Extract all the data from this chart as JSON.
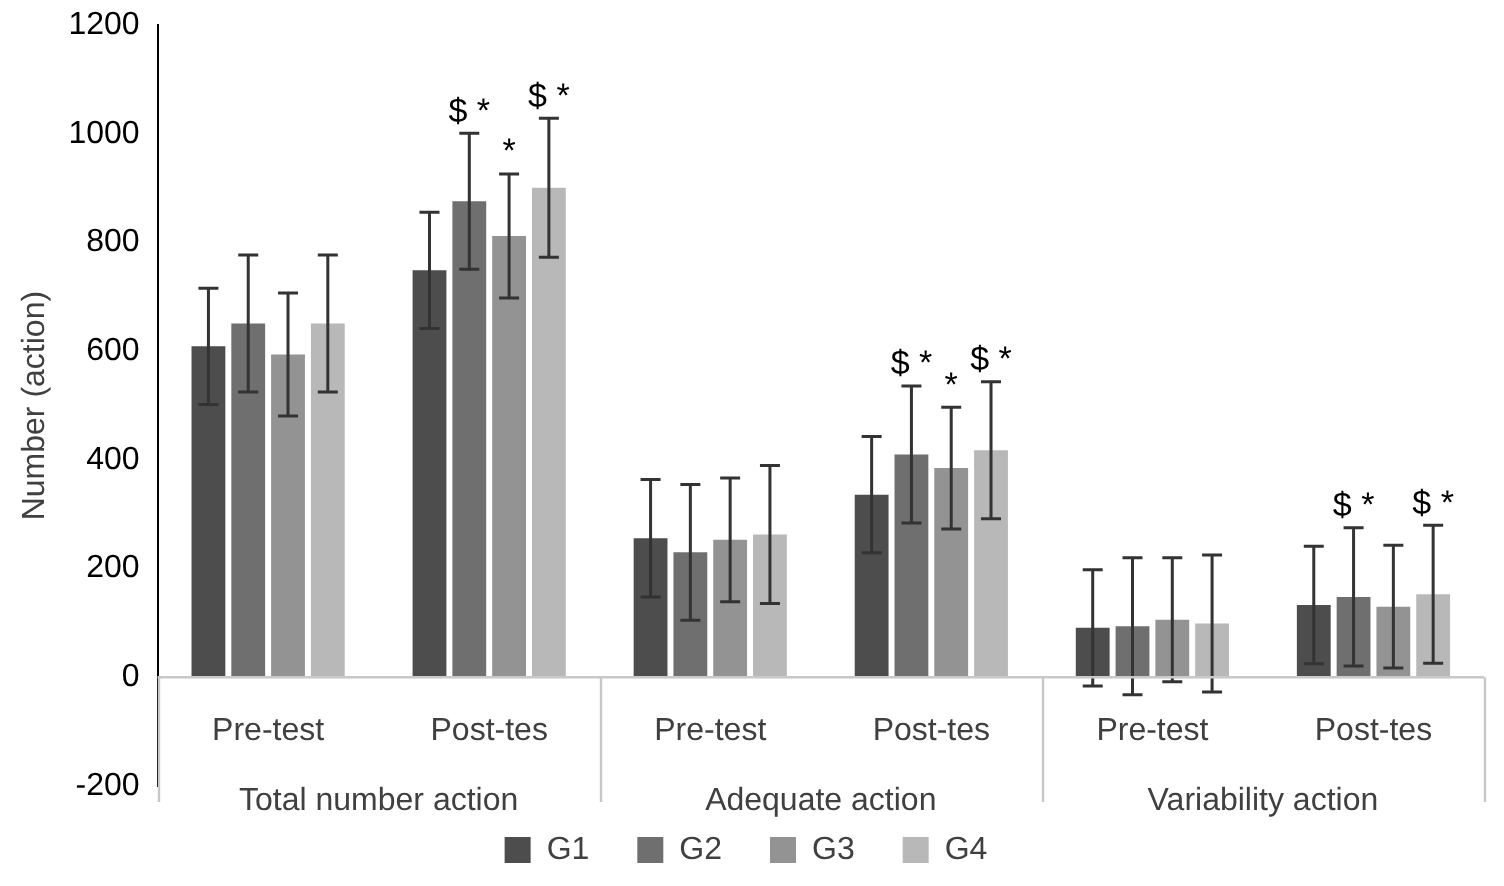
{
  "chart_data": {
    "type": "bar",
    "ylabel": "Number (action)",
    "categories": [
      "Pre-test",
      "Post-tes",
      "Pre-test",
      "Post-tes",
      "Pre-test",
      "Post-tes"
    ],
    "annotations": [
      "Total number action",
      "Adequate action",
      "Variability action"
    ],
    "series": [
      {
        "name": "G1",
        "color": "#4d4d4d",
        "values": [
          609,
          749,
          256,
          336,
          91,
          133
        ],
        "errors": [
          107,
          107,
          108,
          107,
          107,
          108
        ],
        "value_labels": [
          null,
          null,
          null,
          null,
          null,
          null
        ]
      },
      {
        "name": "G2",
        "color": "#6f6f6f",
        "values": [
          651,
          876,
          230,
          410,
          94,
          148
        ],
        "errors": [
          126,
          125,
          125,
          126,
          126,
          127
        ],
        "value_labels": [
          null,
          "$\n*",
          null,
          "$\n*",
          null,
          "$\n*"
        ]
      },
      {
        "name": "G3",
        "color": "#939393",
        "values": [
          594,
          812,
          253,
          385,
          106,
          130
        ],
        "errors": [
          113,
          114,
          114,
          112,
          114,
          113
        ],
        "value_labels": [
          null,
          "*",
          null,
          "*",
          null,
          null
        ]
      },
      {
        "name": "G4",
        "color": "#b8b8b8",
        "values": [
          651,
          901,
          263,
          418,
          99,
          153
        ],
        "errors": [
          126,
          128,
          127,
          126,
          126,
          127
        ],
        "value_labels": [
          null,
          "$\n*",
          null,
          "$\n*",
          null,
          "$\n*"
        ]
      }
    ],
    "ylim": [
      -200,
      1200
    ],
    "yticks": [
      -200,
      0,
      200,
      400,
      600,
      800,
      1000,
      1200
    ],
    "grid": false,
    "legend": "bottom"
  }
}
